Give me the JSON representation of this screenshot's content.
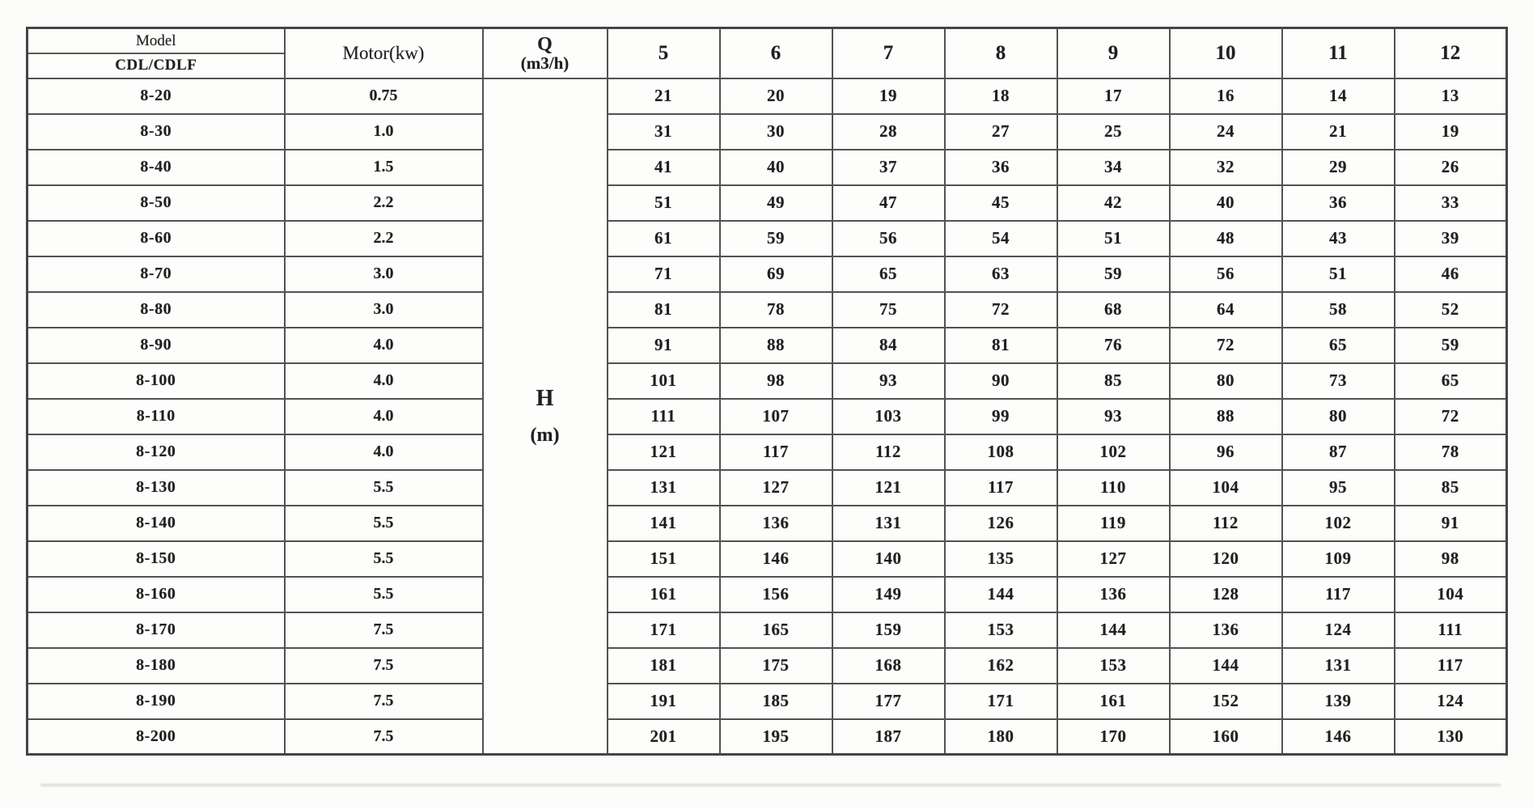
{
  "table": {
    "header": {
      "model_label": "Model",
      "model_sublabel": "CDL/CDLF",
      "motor_label": "Motor(kw)",
      "q_label": "Q",
      "q_unit": "(m3/h)",
      "flow_columns": [
        "5",
        "6",
        "7",
        "8",
        "9",
        "10",
        "11",
        "12"
      ]
    },
    "body_label": {
      "h": "H",
      "unit": "(m)"
    },
    "rows": [
      {
        "model": "8-20",
        "motor": "0.75",
        "values": [
          21,
          20,
          19,
          18,
          17,
          16,
          14,
          13
        ]
      },
      {
        "model": "8-30",
        "motor": "1.0",
        "values": [
          31,
          30,
          28,
          27,
          25,
          24,
          21,
          19
        ]
      },
      {
        "model": "8-40",
        "motor": "1.5",
        "values": [
          41,
          40,
          37,
          36,
          34,
          32,
          29,
          26
        ]
      },
      {
        "model": "8-50",
        "motor": "2.2",
        "values": [
          51,
          49,
          47,
          45,
          42,
          40,
          36,
          33
        ]
      },
      {
        "model": "8-60",
        "motor": "2.2",
        "values": [
          61,
          59,
          56,
          54,
          51,
          48,
          43,
          39
        ]
      },
      {
        "model": "8-70",
        "motor": "3.0",
        "values": [
          71,
          69,
          65,
          63,
          59,
          56,
          51,
          46
        ]
      },
      {
        "model": "8-80",
        "motor": "3.0",
        "values": [
          81,
          78,
          75,
          72,
          68,
          64,
          58,
          52
        ]
      },
      {
        "model": "8-90",
        "motor": "4.0",
        "values": [
          91,
          88,
          84,
          81,
          76,
          72,
          65,
          59
        ]
      },
      {
        "model": "8-100",
        "motor": "4.0",
        "values": [
          101,
          98,
          93,
          90,
          85,
          80,
          73,
          65
        ]
      },
      {
        "model": "8-110",
        "motor": "4.0",
        "values": [
          111,
          107,
          103,
          99,
          93,
          88,
          80,
          72
        ]
      },
      {
        "model": "8-120",
        "motor": "4.0",
        "values": [
          121,
          117,
          112,
          108,
          102,
          96,
          87,
          78
        ]
      },
      {
        "model": "8-130",
        "motor": "5.5",
        "values": [
          131,
          127,
          121,
          117,
          110,
          104,
          95,
          85
        ]
      },
      {
        "model": "8-140",
        "motor": "5.5",
        "values": [
          141,
          136,
          131,
          126,
          119,
          112,
          102,
          91
        ]
      },
      {
        "model": "8-150",
        "motor": "5.5",
        "values": [
          151,
          146,
          140,
          135,
          127,
          120,
          109,
          98
        ]
      },
      {
        "model": "8-160",
        "motor": "5.5",
        "values": [
          161,
          156,
          149,
          144,
          136,
          128,
          117,
          104
        ]
      },
      {
        "model": "8-170",
        "motor": "7.5",
        "values": [
          171,
          165,
          159,
          153,
          144,
          136,
          124,
          111
        ]
      },
      {
        "model": "8-180",
        "motor": "7.5",
        "values": [
          181,
          175,
          168,
          162,
          153,
          144,
          131,
          117
        ]
      },
      {
        "model": "8-190",
        "motor": "7.5",
        "values": [
          191,
          185,
          177,
          171,
          161,
          152,
          139,
          124
        ]
      },
      {
        "model": "8-200",
        "motor": "7.5",
        "values": [
          201,
          195,
          187,
          180,
          170,
          160,
          146,
          130
        ]
      }
    ]
  }
}
